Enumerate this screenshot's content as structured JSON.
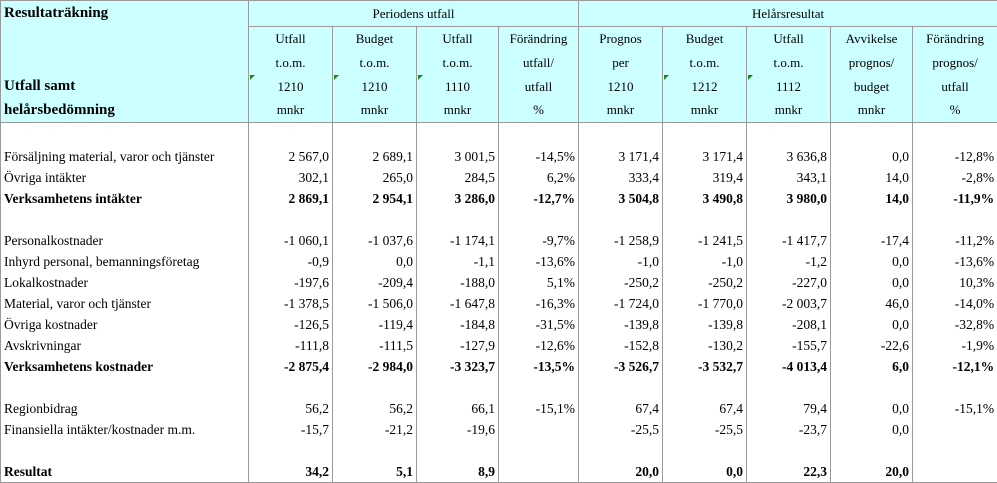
{
  "title": "Resultaträkning",
  "subtitle_line1": "Utfall samt",
  "subtitle_line2": "helårsbedömning",
  "group_period": "Periodens utfall",
  "group_year": "Helårsresultat",
  "columns": [
    {
      "l1": "Utfall",
      "l2": "t.o.m.",
      "l3": "1210",
      "l4": "mnkr"
    },
    {
      "l1": "Budget",
      "l2": "t.o.m.",
      "l3": "1210",
      "l4": "mnkr"
    },
    {
      "l1": "Utfall",
      "l2": "t.o.m.",
      "l3": "1110",
      "l4": "mnkr"
    },
    {
      "l1": "Förändring",
      "l2": "utfall/",
      "l3": "utfall",
      "l4": "%"
    },
    {
      "l1": "Prognos",
      "l2": "per",
      "l3": "1210",
      "l4": "mnkr"
    },
    {
      "l1": "Budget",
      "l2": "t.o.m.",
      "l3": "1212",
      "l4": "mnkr"
    },
    {
      "l1": "Utfall",
      "l2": "t.o.m.",
      "l3": "1112",
      "l4": "mnkr"
    },
    {
      "l1": "Avvikelse",
      "l2": "prognos/",
      "l3": "budget",
      "l4": "mnkr"
    },
    {
      "l1": "Förändring",
      "l2": "prognos/",
      "l3": "utfall",
      "l4": "%"
    }
  ],
  "rows": [
    {
      "label": "Försäljning material, varor och tjänster",
      "v": [
        "2 567,0",
        "2 689,1",
        "3 001,5",
        "-14,5%",
        "3 171,4",
        "3 171,4",
        "3 636,8",
        "0,0",
        "-12,8%"
      ]
    },
    {
      "label": "Övriga intäkter",
      "v": [
        "302,1",
        "265,0",
        "284,5",
        "6,2%",
        "333,4",
        "319,4",
        "343,1",
        "14,0",
        "-2,8%"
      ]
    },
    {
      "label": "Verksamhetens intäkter",
      "v": [
        "2 869,1",
        "2 954,1",
        "3 286,0",
        "-12,7%",
        "3 504,8",
        "3 490,8",
        "3 980,0",
        "14,0",
        "-11,9%"
      ]
    },
    {
      "label": "Personalkostnader",
      "v": [
        "-1 060,1",
        "-1 037,6",
        "-1 174,1",
        "-9,7%",
        "-1 258,9",
        "-1 241,5",
        "-1 417,7",
        "-17,4",
        "-11,2%"
      ]
    },
    {
      "label": "Inhyrd personal, bemanningsföretag",
      "v": [
        "-0,9",
        "0,0",
        "-1,1",
        "-13,6%",
        "-1,0",
        "-1,0",
        "-1,2",
        "0,0",
        "-13,6%"
      ]
    },
    {
      "label": "Lokalkostnader",
      "v": [
        "-197,6",
        "-209,4",
        "-188,0",
        "5,1%",
        "-250,2",
        "-250,2",
        "-227,0",
        "0,0",
        "10,3%"
      ]
    },
    {
      "label": "Material, varor och tjänster",
      "v": [
        "-1 378,5",
        "-1 506,0",
        "-1 647,8",
        "-16,3%",
        "-1 724,0",
        "-1 770,0",
        "-2 003,7",
        "46,0",
        "-14,0%"
      ]
    },
    {
      "label": "Övriga kostnader",
      "v": [
        "-126,5",
        "-119,4",
        "-184,8",
        "-31,5%",
        "-139,8",
        "-139,8",
        "-208,1",
        "0,0",
        "-32,8%"
      ]
    },
    {
      "label": "Avskrivningar",
      "v": [
        "-111,8",
        "-111,5",
        "-127,9",
        "-12,6%",
        "-152,8",
        "-130,2",
        "-155,7",
        "-22,6",
        "-1,9%"
      ]
    },
    {
      "label": "Verksamhetens kostnader",
      "v": [
        "-2 875,4",
        "-2 984,0",
        "-3 323,7",
        "-13,5%",
        "-3 526,7",
        "-3 532,7",
        "-4 013,4",
        "6,0",
        "-12,1%"
      ]
    },
    {
      "label": "Regionbidrag",
      "v": [
        "56,2",
        "56,2",
        "66,1",
        "-15,1%",
        "67,4",
        "67,4",
        "79,4",
        "0,0",
        "-15,1%"
      ]
    },
    {
      "label": "Finansiella intäkter/kostnader m.m.",
      "v": [
        "-15,7",
        "-21,2",
        "-19,6",
        "",
        "-25,5",
        "-25,5",
        "-23,7",
        "0,0",
        ""
      ]
    },
    {
      "label": "Resultat",
      "v": [
        "34,2",
        "5,1",
        "8,9",
        "",
        "20,0",
        "0,0",
        "22,3",
        "20,0",
        ""
      ]
    }
  ]
}
